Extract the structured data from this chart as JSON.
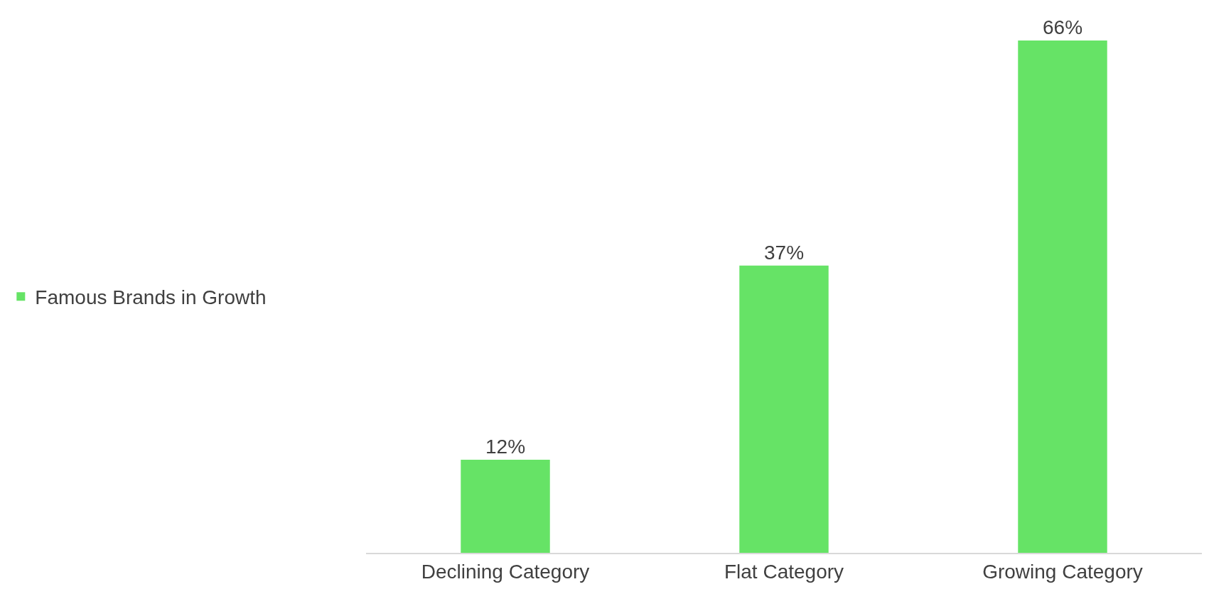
{
  "chart_data": {
    "type": "bar",
    "categories": [
      "Declining Category",
      "Flat Category",
      "Growing Category"
    ],
    "series": [
      {
        "name": "Famous Brands in Growth",
        "color": "#66e366",
        "values": [
          12,
          37,
          66
        ],
        "value_labels": [
          "12%",
          "37%",
          "66%"
        ]
      }
    ],
    "legend": "left"
  }
}
